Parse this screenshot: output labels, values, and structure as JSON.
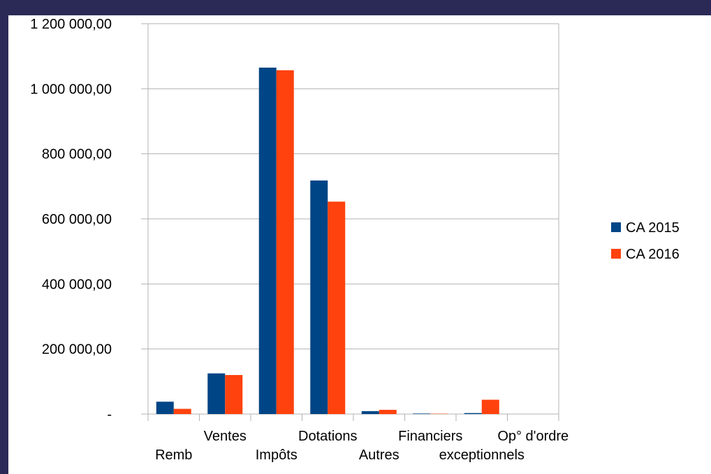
{
  "chart_data": {
    "type": "bar",
    "categories": [
      "Remb",
      "Ventes",
      "Impôts",
      "Dotations",
      "Autres",
      "Financiers",
      "exceptionnels",
      "Op° d'ordre"
    ],
    "series": [
      {
        "name": "CA 2015",
        "values": [
          38000,
          125000,
          1065000,
          718000,
          9000,
          1500,
          3000,
          0
        ]
      },
      {
        "name": "CA 2016",
        "values": [
          16000,
          120000,
          1057000,
          653000,
          13000,
          1000,
          44000,
          0
        ]
      }
    ],
    "colors": [
      "#004586",
      "#ff420e"
    ],
    "yticks": [
      "-",
      "200 000,00",
      "400 000,00",
      "600 000,00",
      "800 000,00",
      "1 000 000,00",
      "1 200 000,00"
    ],
    "ylim": [
      0,
      1200000
    ],
    "grid": true,
    "legend_position": "right",
    "title": "",
    "xlabel": "",
    "ylabel": ""
  }
}
